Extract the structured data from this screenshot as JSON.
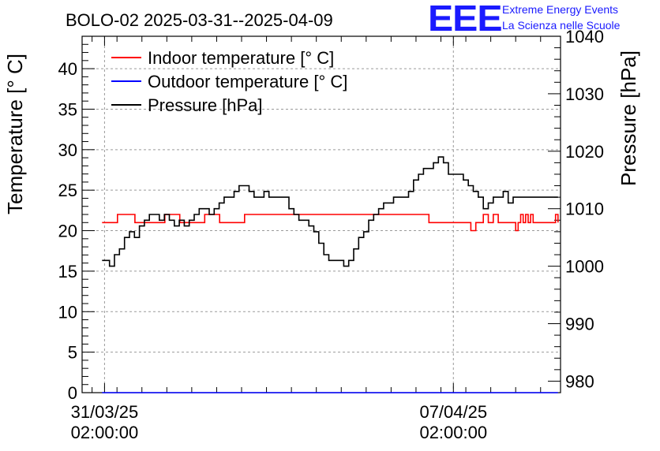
{
  "title": "BOLO-02 2025-03-31--2025-04-09",
  "logo": {
    "mark": "EEE",
    "line1": "Extreme Energy Events",
    "line2": "La Scienza nelle Scuole",
    "color": "#1a1aff"
  },
  "chart_data": {
    "type": "line",
    "title": "BOLO-02 2025-03-31--2025-04-09",
    "xlabel": "",
    "ylabel_left": "Temperature [° C]",
    "ylabel_right": "Pressure [hPa]",
    "ylim_left": [
      0,
      44
    ],
    "ylim_right": [
      978,
      1040
    ],
    "xlim_days": [
      -0.45,
      9.15
    ],
    "left_ticks": [
      "0",
      "5",
      "10",
      "15",
      "20",
      "25",
      "30",
      "35",
      "40"
    ],
    "right_ticks": [
      "980",
      "990",
      "1000",
      "1010",
      "1020",
      "1030",
      "1040"
    ],
    "x_ticks": [
      {
        "day": 0,
        "date": "31/03/25",
        "time": "02:00:00"
      },
      {
        "day": 7,
        "date": "07/04/25",
        "time": "02:00:00"
      }
    ],
    "grid": true,
    "legend_position": "top-left",
    "series": [
      {
        "name": "Indoor temperature [° C]",
        "axis": "left",
        "color": "#ff0000",
        "x": [
          -0.05,
          0.25,
          0.26,
          0.6,
          0.61,
          1.2,
          1.21,
          1.5,
          1.51,
          2.0,
          2.01,
          2.3,
          2.31,
          2.8,
          2.81,
          3.0,
          3.01,
          6.5,
          6.51,
          7.0,
          7.01,
          7.3,
          7.35,
          7.45,
          7.6,
          7.7,
          7.8,
          7.9,
          8.0,
          8.1,
          8.2,
          8.25,
          8.3,
          8.35,
          8.4,
          8.45,
          8.5,
          8.55,
          8.6,
          8.7,
          9.0,
          9.05,
          9.1
        ],
        "y": [
          21,
          21,
          22,
          22,
          21,
          21,
          22,
          22,
          21,
          21,
          22,
          22,
          21,
          21,
          22,
          22,
          22,
          22,
          21,
          21,
          21,
          21,
          20,
          21,
          22,
          21,
          22,
          21,
          21,
          21,
          21,
          20,
          21,
          22,
          21,
          22,
          21,
          22,
          21,
          21,
          21,
          22,
          21
        ]
      },
      {
        "name": "Outdoor temperature [° C]",
        "axis": "left",
        "color": "#0000ff",
        "x": [
          -0.05,
          9.1
        ],
        "y": [
          0,
          0
        ]
      },
      {
        "name": "Pressure [hPa]",
        "axis": "right",
        "color": "#000000",
        "x": [
          -0.05,
          0.05,
          0.1,
          0.2,
          0.3,
          0.4,
          0.5,
          0.6,
          0.7,
          0.8,
          0.9,
          1.0,
          1.1,
          1.2,
          1.3,
          1.4,
          1.5,
          1.6,
          1.7,
          1.8,
          1.9,
          2.0,
          2.1,
          2.2,
          2.3,
          2.4,
          2.5,
          2.6,
          2.7,
          2.8,
          2.9,
          3.0,
          3.1,
          3.2,
          3.3,
          3.4,
          3.5,
          3.6,
          3.7,
          3.8,
          3.9,
          4.0,
          4.1,
          4.2,
          4.3,
          4.4,
          4.5,
          4.6,
          4.7,
          4.8,
          4.9,
          5.0,
          5.1,
          5.2,
          5.3,
          5.4,
          5.5,
          5.6,
          5.7,
          5.8,
          5.9,
          6.0,
          6.1,
          6.2,
          6.3,
          6.4,
          6.5,
          6.6,
          6.7,
          6.8,
          6.9,
          7.0,
          7.1,
          7.2,
          7.3,
          7.4,
          7.5,
          7.6,
          7.7,
          7.8,
          7.9,
          8.0,
          8.1,
          8.2,
          8.3,
          8.4,
          8.5,
          8.6,
          8.7,
          8.8,
          8.9,
          9.0,
          9.1
        ],
        "y": [
          1001,
          1001,
          1000,
          1002,
          1003,
          1005,
          1006,
          1005,
          1007,
          1008,
          1009,
          1009,
          1008,
          1009,
          1008,
          1007,
          1008,
          1007,
          1008,
          1009,
          1010,
          1010,
          1009,
          1010,
          1011,
          1012,
          1012,
          1013,
          1014,
          1014,
          1013,
          1012,
          1012,
          1013,
          1012,
          1012,
          1012,
          1012,
          1010,
          1009,
          1008,
          1008,
          1007,
          1006,
          1004,
          1002,
          1001,
          1001,
          1001,
          1000,
          1001,
          1003,
          1005,
          1006,
          1008,
          1009,
          1010,
          1011,
          1011,
          1012,
          1012,
          1012,
          1013,
          1015,
          1016,
          1017,
          1017,
          1018,
          1019,
          1018,
          1016,
          1016,
          1016,
          1015,
          1014,
          1013,
          1012,
          1010,
          1011,
          1012,
          1012,
          1013,
          1011,
          1012,
          1012,
          1012,
          1012,
          1012,
          1012,
          1012,
          1012,
          1012,
          1012
        ]
      }
    ]
  }
}
